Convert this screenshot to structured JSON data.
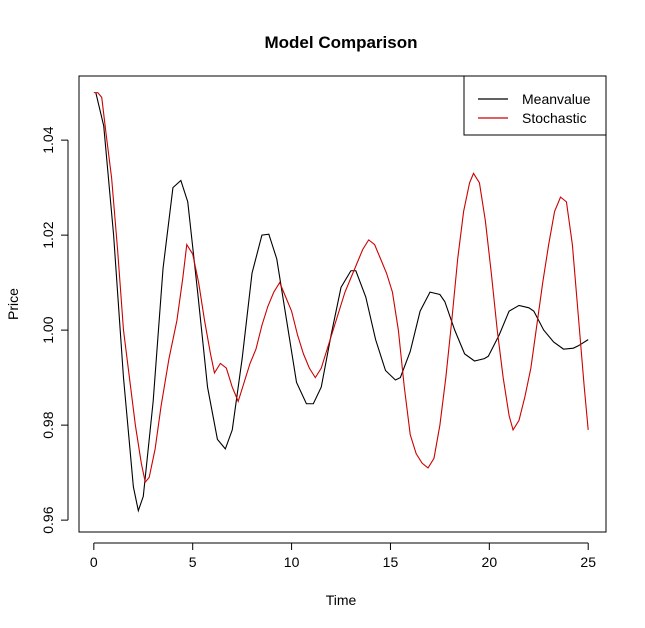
{
  "chart_data": {
    "type": "line",
    "title": "Model Comparison",
    "xlabel": "Time",
    "ylabel": "Price",
    "xlim": [
      -0.75,
      25.9
    ],
    "ylim": [
      0.9575,
      1.0535
    ],
    "x_ticks": [
      0,
      5,
      10,
      15,
      20,
      25
    ],
    "x_tick_labels": [
      "0",
      "5",
      "10",
      "15",
      "20",
      "25"
    ],
    "y_ticks": [
      0.96,
      0.98,
      1.0,
      1.02,
      1.04
    ],
    "y_tick_labels": [
      "0.96",
      "0.98",
      "1.00",
      "1.02",
      "1.04"
    ],
    "grid": false,
    "legend_position": "top-right",
    "series": [
      {
        "name": "Meanvalue",
        "color": "#000000",
        "x": [
          0.1,
          0.5,
          1.0,
          1.5,
          2.0,
          2.25,
          2.5,
          3.0,
          3.5,
          4.0,
          4.4,
          4.75,
          5.25,
          5.75,
          6.25,
          6.65,
          7.0,
          7.5,
          8.0,
          8.5,
          8.85,
          9.25,
          9.75,
          10.25,
          10.75,
          11.1,
          11.5,
          12.0,
          12.5,
          13.0,
          13.25,
          13.75,
          14.25,
          14.75,
          15.25,
          15.5,
          16.0,
          16.5,
          17.0,
          17.5,
          17.75,
          18.25,
          18.75,
          19.25,
          19.75,
          19.95,
          20.5,
          21.0,
          21.5,
          22.0,
          22.25,
          22.75,
          23.25,
          23.75,
          24.25,
          24.5,
          25.0
        ],
        "values": [
          1.05,
          1.043,
          1.02,
          0.99,
          0.967,
          0.962,
          0.965,
          0.985,
          1.013,
          1.03,
          1.0315,
          1.027,
          1.008,
          0.988,
          0.977,
          0.975,
          0.979,
          0.994,
          1.012,
          1.02,
          1.0202,
          1.015,
          1.002,
          0.989,
          0.9845,
          0.9845,
          0.988,
          0.999,
          1.009,
          1.0125,
          1.0125,
          1.007,
          0.998,
          0.9915,
          0.9895,
          0.99,
          0.9955,
          1.004,
          1.008,
          1.0075,
          1.006,
          1.0,
          0.995,
          0.9935,
          0.994,
          0.9945,
          0.999,
          1.004,
          1.0052,
          1.0047,
          1.004,
          1.0,
          0.9975,
          0.996,
          0.9962,
          0.9967,
          0.998
        ]
      },
      {
        "name": "Stochastic",
        "color": "#cc0000",
        "x": [
          0.0,
          0.2,
          0.4,
          0.6,
          0.9,
          1.2,
          1.5,
          1.8,
          2.1,
          2.4,
          2.6,
          2.8,
          3.1,
          3.4,
          3.8,
          4.2,
          4.5,
          4.7,
          5.0,
          5.3,
          5.6,
          5.9,
          6.1,
          6.4,
          6.7,
          7.0,
          7.3,
          7.6,
          7.9,
          8.2,
          8.5,
          8.8,
          9.1,
          9.4,
          9.7,
          10.0,
          10.3,
          10.6,
          10.9,
          11.2,
          11.5,
          11.8,
          12.1,
          12.4,
          12.7,
          13.0,
          13.3,
          13.6,
          13.9,
          14.2,
          14.5,
          14.8,
          15.1,
          15.4,
          15.7,
          16.0,
          16.3,
          16.6,
          16.9,
          17.2,
          17.5,
          17.8,
          18.1,
          18.4,
          18.7,
          19.0,
          19.2,
          19.5,
          19.8,
          20.1,
          20.4,
          20.7,
          21.0,
          21.2,
          21.5,
          21.8,
          22.1,
          22.4,
          22.7,
          23.0,
          23.3,
          23.6,
          23.9,
          24.2,
          24.5,
          24.8,
          25.0
        ],
        "values": [
          1.05,
          1.05,
          1.049,
          1.042,
          1.032,
          1.017,
          1.0,
          0.99,
          0.98,
          0.972,
          0.968,
          0.969,
          0.975,
          0.984,
          0.994,
          1.002,
          1.011,
          1.018,
          1.016,
          1.01,
          1.002,
          0.995,
          0.991,
          0.993,
          0.992,
          0.988,
          0.985,
          0.989,
          0.993,
          0.996,
          1.001,
          1.005,
          1.008,
          1.01,
          1.007,
          1.004,
          0.999,
          0.995,
          0.992,
          0.99,
          0.992,
          0.996,
          1.0,
          1.004,
          1.008,
          1.011,
          1.014,
          1.017,
          1.019,
          1.018,
          1.015,
          1.012,
          1.008,
          1.0,
          0.988,
          0.978,
          0.974,
          0.972,
          0.971,
          0.973,
          0.98,
          0.99,
          1.002,
          1.015,
          1.025,
          1.031,
          1.033,
          1.031,
          1.023,
          1.012,
          1.0,
          0.99,
          0.982,
          0.979,
          0.981,
          0.986,
          0.992,
          1.001,
          1.01,
          1.018,
          1.025,
          1.028,
          1.027,
          1.018,
          1.003,
          0.988,
          0.979
        ]
      }
    ]
  }
}
